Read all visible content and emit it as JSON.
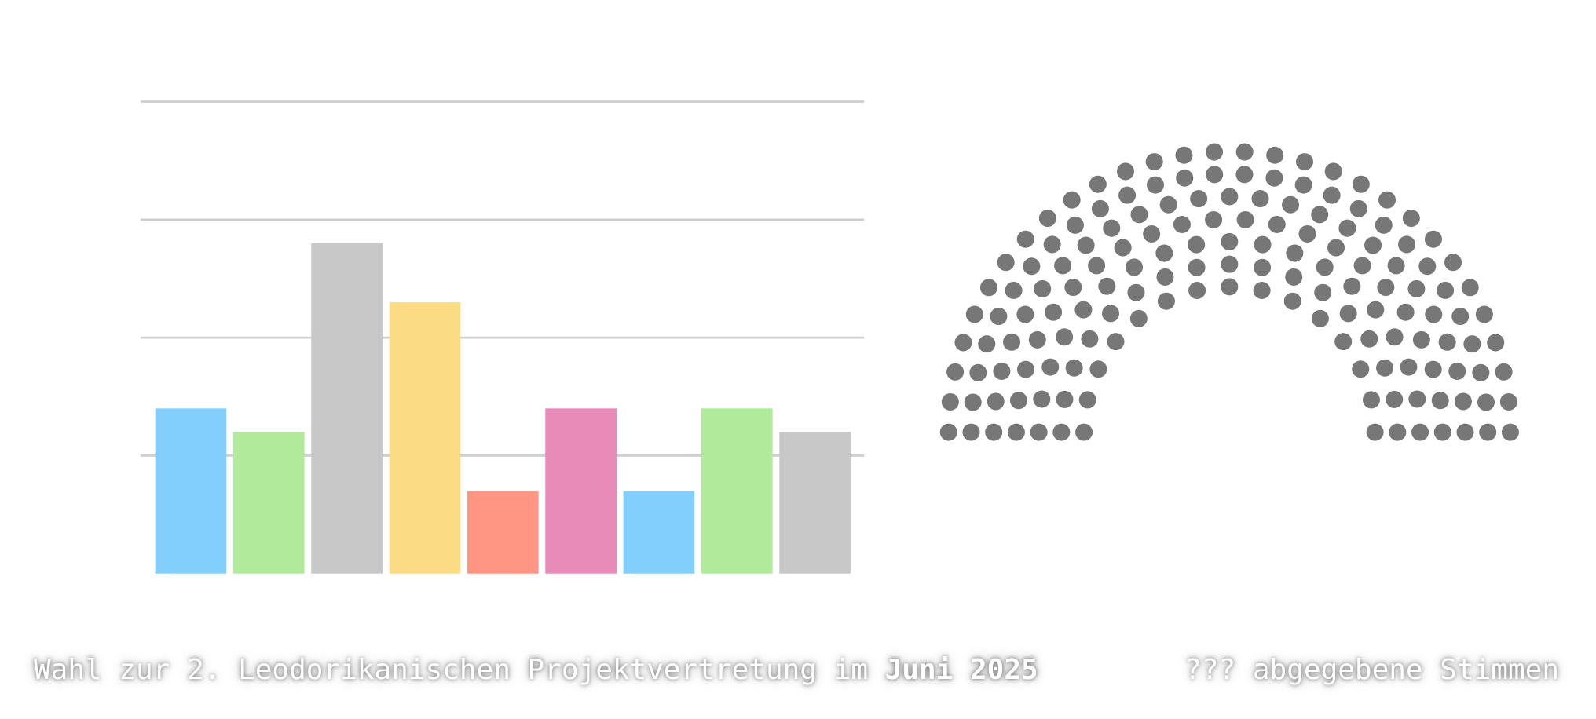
{
  "chart_data": [
    {
      "type": "bar",
      "categories": [
        null,
        null,
        null,
        null,
        null,
        null,
        null,
        null,
        null
      ],
      "values": [
        14,
        12,
        28,
        23,
        7,
        14,
        7,
        14,
        12
      ],
      "colors": [
        "#82cffd",
        "#b0eb9b",
        "#c8c8c8",
        "#fbdc82",
        "#ff9582",
        "#e88bb8",
        "#82cffd",
        "#b0eb9b",
        "#c8c8c8"
      ],
      "ylim": [
        0,
        40
      ],
      "yticks": [
        10,
        20,
        30,
        40
      ],
      "grid": true
    },
    {
      "type": "parliament",
      "values": [
        156
      ],
      "colors": [
        "#777777"
      ]
    }
  ],
  "caption": {
    "text": "Wahl zur 2. Leodorikanischen Projektvertretung im",
    "highlight": "Juni 2025",
    "right": "??? abgegebene Stimmen"
  }
}
